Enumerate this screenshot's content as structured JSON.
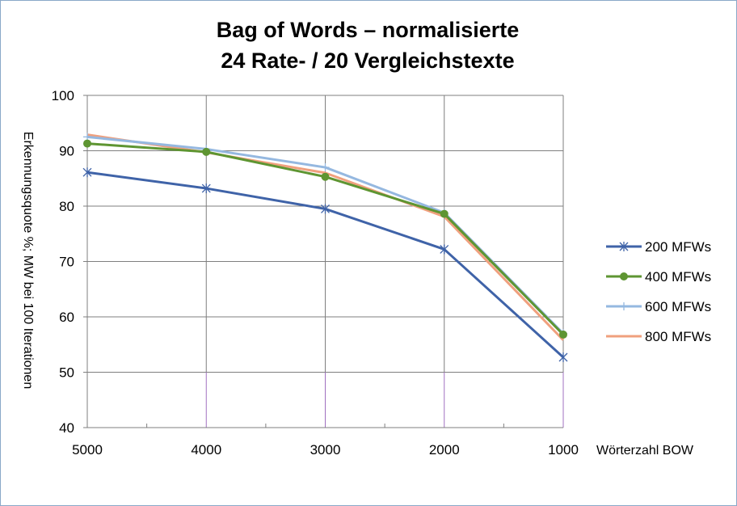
{
  "chart_data": {
    "type": "line",
    "title_lines": [
      "Bag of Words – normalisierte",
      "24 Rate- / 20 Vergleichstexte"
    ],
    "xlabel": "Wörterzahl BOW",
    "ylabel": "Erkennungsquote %; MW bei 100 Iterationen",
    "categories": [
      "5000",
      "4000",
      "3000",
      "2000",
      "1000"
    ],
    "ylim": [
      40,
      100
    ],
    "yticks": [
      "40",
      "50",
      "60",
      "70",
      "80",
      "90",
      "100"
    ],
    "grid": true,
    "legend_position": "right",
    "series": [
      {
        "name": "200  MFWs",
        "values": [
          86.1,
          83.2,
          79.5,
          72.2,
          52.7
        ],
        "color": "#3f63a8",
        "marker": "x"
      },
      {
        "name": "400  MFWs",
        "values": [
          91.3,
          89.8,
          85.3,
          78.6,
          56.8
        ],
        "color": "#5e9532",
        "marker": "circle"
      },
      {
        "name": "600 MFWs",
        "values": [
          92.5,
          90.3,
          87.0,
          78.8,
          57.0
        ],
        "color": "#95b8e0",
        "marker": "plus"
      },
      {
        "name": "800 MFWs",
        "values": [
          92.9,
          89.7,
          86.0,
          78.1,
          55.8
        ],
        "color": "#f0a07e",
        "marker": "none"
      }
    ]
  }
}
